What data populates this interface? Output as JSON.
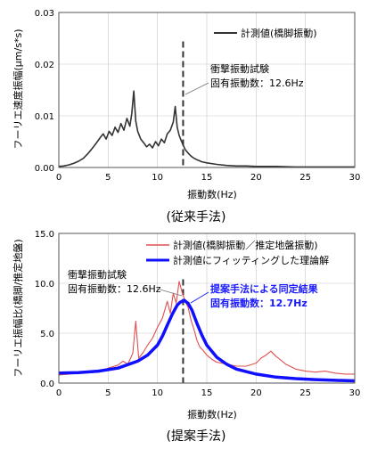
{
  "chart_data": [
    {
      "type": "line",
      "xlabel": "振動数(Hz)",
      "ylabel": "フーリエ速度振幅(μm/s*s)",
      "caption": "(従来手法)",
      "xlim": [
        0,
        30
      ],
      "ylim": [
        0,
        0.03
      ],
      "x_ticks": [
        "0",
        "5",
        "10",
        "15",
        "20",
        "25",
        "30"
      ],
      "y_ticks": [
        "0.00",
        "0.01",
        "0.02",
        "0.03"
      ],
      "legend_position": "top-right",
      "series": [
        {
          "name": "計測値(橋脚振動)",
          "color": "#333333",
          "x": [
            0,
            0.5,
            1,
            1.5,
            2,
            2.5,
            3,
            3.3,
            3.6,
            3.9,
            4.2,
            4.5,
            4.8,
            5.1,
            5.4,
            5.7,
            6.0,
            6.3,
            6.6,
            6.9,
            7.2,
            7.4,
            7.6,
            7.8,
            8.0,
            8.3,
            8.6,
            8.9,
            9.2,
            9.5,
            9.8,
            10.1,
            10.4,
            10.7,
            11.0,
            11.3,
            11.6,
            11.8,
            12.0,
            12.2,
            12.5,
            12.8,
            13.1,
            13.4,
            13.7,
            14.0,
            14.5,
            15,
            16,
            17,
            18,
            19,
            20,
            22,
            24,
            26,
            28,
            30
          ],
          "values": [
            0.0002,
            0.0003,
            0.0005,
            0.0008,
            0.0012,
            0.0018,
            0.0028,
            0.0035,
            0.0042,
            0.005,
            0.0058,
            0.0065,
            0.0055,
            0.007,
            0.0062,
            0.0078,
            0.0068,
            0.0085,
            0.0072,
            0.0095,
            0.008,
            0.0105,
            0.0148,
            0.009,
            0.007,
            0.0055,
            0.0048,
            0.004,
            0.0045,
            0.0038,
            0.005,
            0.0042,
            0.0055,
            0.0048,
            0.0065,
            0.0072,
            0.0088,
            0.0118,
            0.0078,
            0.0062,
            0.0048,
            0.0035,
            0.0028,
            0.0022,
            0.0018,
            0.0015,
            0.0011,
            0.0009,
            0.0006,
            0.0004,
            0.0003,
            0.0003,
            0.0002,
            0.0002,
            0.0001,
            0.0001,
            0.0001,
            0.0001
          ]
        }
      ],
      "reference_line": {
        "x": 12.6
      },
      "annotation": {
        "line1": "衝撃振動試験",
        "line2": "固有振動数：12.6Hz"
      }
    },
    {
      "type": "line",
      "xlabel": "振動数(Hz)",
      "ylabel": "フーリエ振幅比(橋脚/推定地盤)",
      "caption": "(提案手法)",
      "xlim": [
        0,
        30
      ],
      "ylim": [
        0,
        15
      ],
      "x_ticks": [
        "0",
        "5",
        "10",
        "15",
        "20",
        "25",
        "30"
      ],
      "y_ticks": [
        "0.0",
        "5.0",
        "10.0",
        "15.0"
      ],
      "legend_position": "top-right",
      "series": [
        {
          "name": "計測値(橋脚振動／推定地盤振動)",
          "color": "#e05050",
          "x": [
            0,
            1,
            2,
            3,
            4,
            5,
            6,
            6.5,
            7,
            7.5,
            7.8,
            8.1,
            8.5,
            9,
            9.5,
            10,
            10.5,
            11,
            11.3,
            11.6,
            11.9,
            12.2,
            12.5,
            12.8,
            13.1,
            13.4,
            13.7,
            14,
            14.3,
            14.6,
            15,
            15.5,
            16,
            17,
            18,
            19,
            20,
            20.5,
            21,
            21.5,
            22,
            22.5,
            23,
            24,
            25,
            26,
            27,
            28,
            29,
            30
          ],
          "values": [
            0.8,
            0.9,
            1.0,
            1.2,
            1.1,
            1.5,
            1.8,
            2.2,
            1.9,
            3.0,
            6.2,
            2.5,
            3.0,
            3.8,
            4.5,
            5.6,
            6.5,
            8.2,
            7.0,
            9.0,
            8.0,
            10.2,
            9.1,
            8.2,
            7.6,
            6.3,
            5.4,
            4.3,
            3.6,
            3.3,
            2.8,
            2.4,
            2.1,
            1.9,
            1.7,
            1.7,
            2.0,
            2.5,
            2.8,
            3.2,
            2.7,
            2.3,
            1.9,
            1.4,
            1.2,
            1.1,
            1.2,
            1.0,
            0.9,
            0.9
          ]
        },
        {
          "name": "計測値にフィッティングした理論解",
          "color": "#1010ff",
          "x": [
            0,
            2,
            4,
            6,
            8,
            9,
            10,
            10.5,
            11,
            11.5,
            12,
            12.3,
            12.7,
            13.1,
            13.5,
            14,
            14.5,
            15,
            16,
            17,
            18,
            20,
            22,
            24,
            26,
            28,
            30
          ],
          "values": [
            1.0,
            1.05,
            1.2,
            1.5,
            2.2,
            2.8,
            3.8,
            4.7,
            5.8,
            6.9,
            7.8,
            8.1,
            8.3,
            8.0,
            7.3,
            6.0,
            4.8,
            3.8,
            2.6,
            1.9,
            1.4,
            0.9,
            0.6,
            0.45,
            0.35,
            0.28,
            0.22
          ]
        }
      ],
      "reference_line": {
        "x": 12.6
      },
      "annotation": {
        "line1": "衝撃振動試験",
        "line2": "固有振動数：12.6Hz"
      },
      "annotation_blue": {
        "line1": "提案手法による同定結果",
        "line2": "固有振動数：12.7Hz"
      }
    }
  ]
}
